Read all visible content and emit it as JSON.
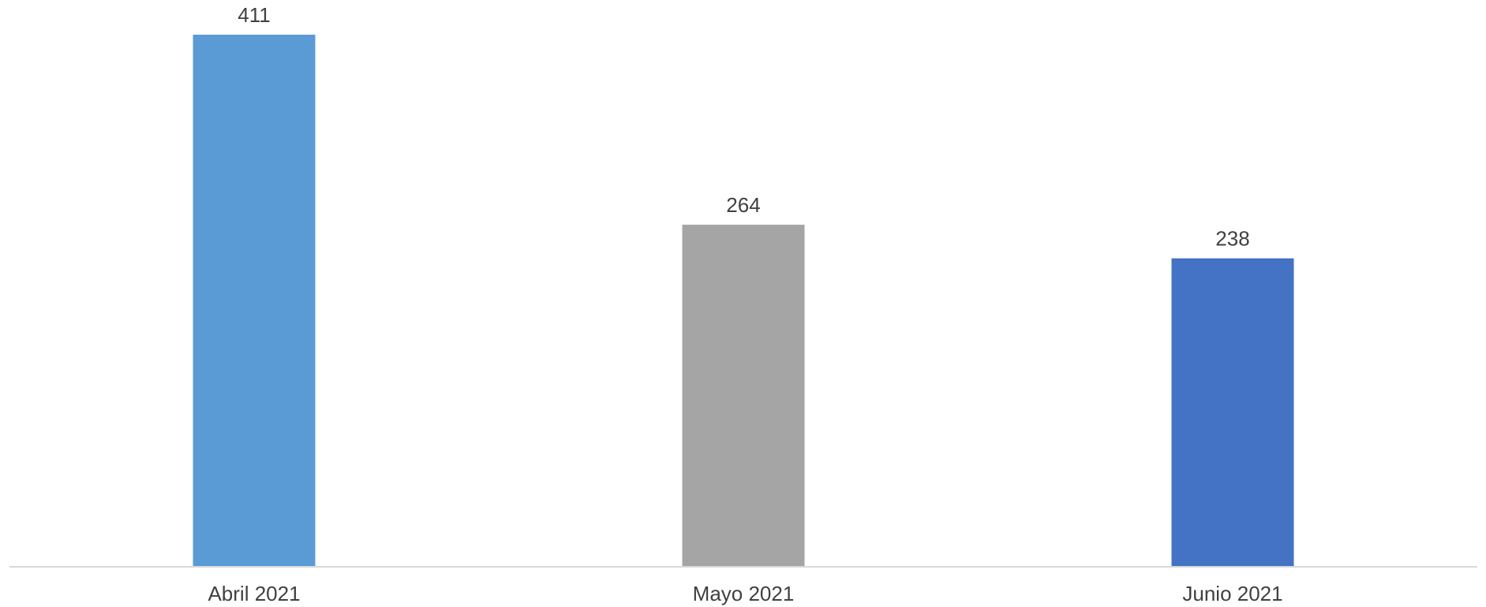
{
  "chart_data": {
    "type": "bar",
    "categories": [
      "Abril 2021",
      "Mayo 2021",
      "Junio 2021"
    ],
    "values": [
      411,
      264,
      238
    ],
    "colors": [
      "#5b9bd5",
      "#a5a5a5",
      "#4472c4"
    ],
    "data_labels": [
      "411",
      "264",
      "238"
    ],
    "title": "",
    "xlabel": "",
    "ylabel": "",
    "ylim": [
      0,
      420
    ],
    "grid": false,
    "legend": "none"
  }
}
